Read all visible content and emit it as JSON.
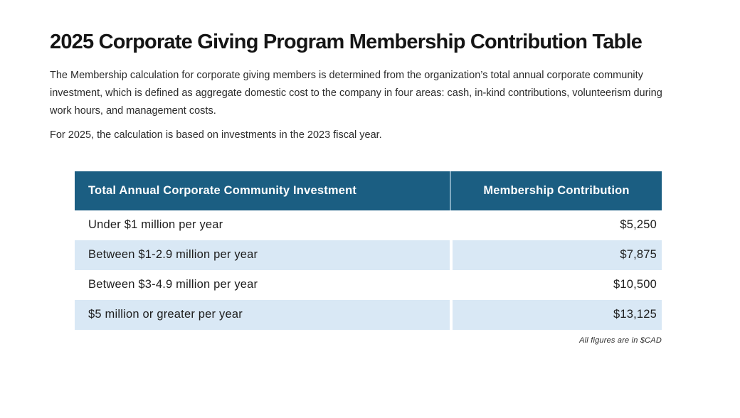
{
  "page": {
    "title": "2025 Corporate Giving Program Membership Contribution Table",
    "intro_paragraph": "The Membership calculation for corporate giving members is determined from the organization’s total annual corporate community investment, which is defined as aggregate domestic cost to the company in four areas: cash, in-kind contributions, volunteerism during work hours, and management costs.",
    "basis_paragraph": "For 2025, the calculation is based on investments in the 2023 fiscal year.",
    "footnote": "All figures are in $CAD"
  },
  "table": {
    "columns": [
      "Total Annual Corporate Community Investment",
      "Membership Contribution"
    ],
    "rows": [
      {
        "investment": "Under $1 million per year",
        "contribution": "$5,250"
      },
      {
        "investment": "Between $1-2.9 million per year",
        "contribution": "$7,875"
      },
      {
        "investment": "Between $3-4.9 million per year",
        "contribution": "$10,500"
      },
      {
        "investment": "$5 million or greater per year",
        "contribution": "$13,125"
      }
    ]
  },
  "colors": {
    "header_bg": "#1b5e82",
    "header_text": "#ffffff",
    "row_alt_bg": "#d9e8f5",
    "header_divider": "#7fa9c1",
    "title_text": "#151515",
    "body_text": "#2b2b2b"
  }
}
